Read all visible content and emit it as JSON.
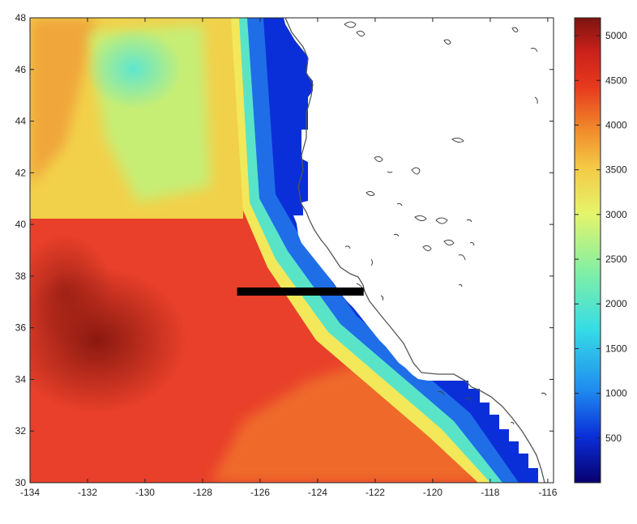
{
  "map": {
    "x_ticks": [
      "-134",
      "-132",
      "-130",
      "-128",
      "-126",
      "-124",
      "-122",
      "-120",
      "-118",
      "-116"
    ],
    "y_ticks": [
      "48",
      "46",
      "44",
      "42",
      "40",
      "38",
      "36",
      "34",
      "32",
      "30"
    ],
    "lon_range": [
      -134,
      -115.8
    ],
    "lat_range": [
      30,
      48
    ],
    "transect": {
      "lon_start": -126.8,
      "lon_end": -122.4,
      "lat": 37.4,
      "color": "#000000"
    }
  },
  "colorbar": {
    "ticks": [
      "5000",
      "4500",
      "4000",
      "3500",
      "3000",
      "2500",
      "2000",
      "1500",
      "1000",
      "500"
    ],
    "range": [
      0,
      5200
    ],
    "colors": [
      "#08006e",
      "#0a2fd8",
      "#1f8cf0",
      "#36dce6",
      "#7fefa6",
      "#e6f46a",
      "#f4c845",
      "#f08a2a",
      "#e83a1e",
      "#c8201a",
      "#7c1410"
    ]
  }
}
